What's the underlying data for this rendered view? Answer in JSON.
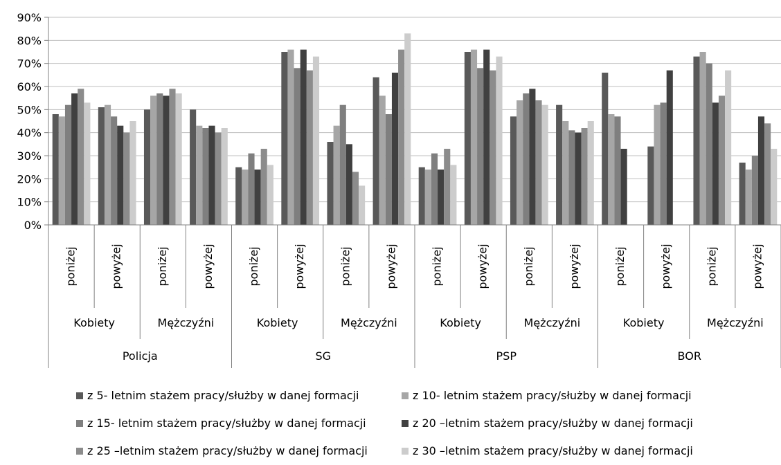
{
  "chart_data": {
    "type": "bar",
    "ylim": [
      0,
      90
    ],
    "y_ticks": [
      "0%",
      "10%",
      "20%",
      "30%",
      "40%",
      "50%",
      "60%",
      "70%",
      "80%",
      "90%"
    ],
    "y_unit": "%",
    "grid": true,
    "legend_position": "bottom",
    "level1_labels": [
      "poniżej",
      "powyżej",
      "poniżej",
      "powyżej",
      "poniżej",
      "powyżej",
      "poniżej",
      "powyżej",
      "poniżej",
      "powyżej",
      "poniżej",
      "powyżej",
      "poniżej",
      "powyżej",
      "poniżej",
      "powyżej"
    ],
    "level2_labels": [
      "Kobiety",
      "Mężczyźni",
      "Kobiety",
      "Mężczyźni",
      "Kobiety",
      "Mężczyźni",
      "Kobiety",
      "Mężczyźni"
    ],
    "level3_labels": [
      "Policja",
      "SG",
      "PSP",
      "BOR"
    ],
    "series": [
      {
        "name": "z 5- letnim stażem pracy/służby w danej formacji",
        "color": "#595959",
        "values": [
          48,
          51,
          50,
          50,
          25,
          75,
          36,
          64,
          25,
          75,
          47,
          52,
          66,
          34,
          73,
          27
        ]
      },
      {
        "name": "z 10- letnim stażem pracy/służby w danej formacji",
        "color": "#a6a6a6",
        "values": [
          47,
          52,
          56,
          43,
          24,
          76,
          43,
          56,
          24,
          76,
          54,
          45,
          48,
          52,
          75,
          24
        ]
      },
      {
        "name": "z 15- letnim stażem pracy/służby w danej formacji",
        "color": "#7f7f7f",
        "values": [
          52,
          47,
          57,
          42,
          31,
          68,
          52,
          48,
          31,
          68,
          57,
          41,
          47,
          53,
          70,
          30
        ]
      },
      {
        "name": "z 20 –letnim stażem pracy/służby w danej formacji",
        "color": "#404040",
        "values": [
          57,
          43,
          56,
          43,
          24,
          76,
          35,
          66,
          24,
          76,
          59,
          40,
          33,
          67,
          53,
          47
        ]
      },
      {
        "name": "z 25 –letnim stażem pracy/służby w danej formacji",
        "color": "#8c8c8c",
        "values": [
          59,
          40,
          59,
          40,
          33,
          67,
          23,
          76,
          33,
          67,
          54,
          42,
          0,
          0,
          56,
          44
        ]
      },
      {
        "name": "z 30 –letnim stażem pracy/służby w danej formacji",
        "color": "#cccccc",
        "values": [
          53,
          45,
          57,
          42,
          26,
          73,
          17,
          83,
          26,
          73,
          52,
          45,
          0,
          0,
          67,
          33
        ]
      }
    ]
  }
}
